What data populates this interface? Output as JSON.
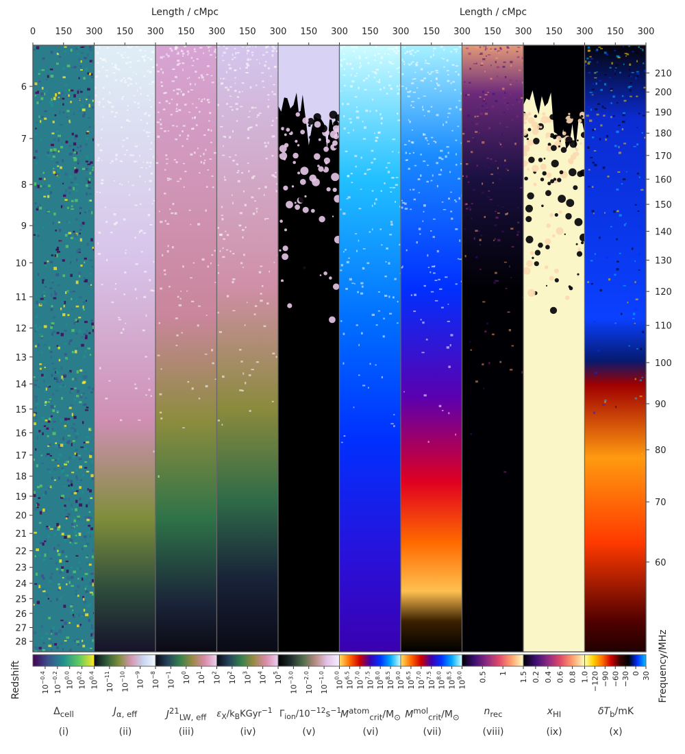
{
  "figure": {
    "top_axis_label": "Length / cMpc",
    "left_axis_label": "Redshift",
    "right_axis_label": "Frequency/MHz"
  },
  "chart_data": {
    "type": "heatmap",
    "description_panels": 10,
    "x": {
      "label": "Length / cMpc",
      "ticks": [
        "0",
        "150",
        "300"
      ],
      "range": [
        0,
        300
      ]
    },
    "y_left": {
      "label": "Redshift",
      "ticks": [
        6,
        7,
        8,
        9,
        10,
        11,
        12,
        13,
        14,
        15,
        16,
        17,
        18,
        19,
        20,
        21,
        22,
        23,
        24,
        25,
        26,
        27,
        28
      ]
    },
    "y_right": {
      "label": "Frequency/MHz",
      "ticks": [
        210,
        200,
        190,
        180,
        170,
        160,
        150,
        140,
        130,
        120,
        110,
        100,
        90,
        80,
        70,
        60
      ]
    },
    "panels": [
      {
        "id": "(i)",
        "quantity": "Δcell",
        "colorbar_ticks": [
          "10^-0.4",
          "10^-0.2",
          "10^0.0",
          "10^0.2",
          "10^0.4"
        ],
        "colormap": [
          "#440154",
          "#3b528b",
          "#21908d",
          "#5dc963",
          "#fde725"
        ]
      },
      {
        "id": "(ii)",
        "quantity": "Jα,eff",
        "colorbar_ticks": [
          "10^-11",
          "10^-10",
          "10^-9",
          "10^-8"
        ],
        "colormap": [
          "#0b0b17",
          "#2e5a3a",
          "#7b8e3a",
          "#d495b0",
          "#c8d6f0",
          "#f2f9ff"
        ]
      },
      {
        "id": "(iii)",
        "quantity": "J21LW,eff",
        "colorbar_ticks": [
          "10^-1",
          "10^0",
          "10^1",
          "10^2"
        ],
        "colormap": [
          "#0b0b17",
          "#24435a",
          "#36804b",
          "#9a8a45",
          "#d98aa8",
          "#e8d0f0"
        ]
      },
      {
        "id": "(iv)",
        "quantity": "εX/kBKGyr^-1",
        "colorbar_ticks": [
          "10^2",
          "10^3",
          "10^4",
          "10^5"
        ],
        "colormap": [
          "#0b0b17",
          "#24435a",
          "#36804b",
          "#9a8a45",
          "#d98aa8",
          "#e8d0f0"
        ]
      },
      {
        "id": "(v)",
        "quantity": "Γion/10^-12s^-1",
        "colorbar_ticks": [
          "10^-3.0",
          "10^-2.0",
          "10^-1.0",
          "10^0.0"
        ],
        "colormap": [
          "#000000",
          "#1e2b2d",
          "#4d6c4a",
          "#b58a7f",
          "#e3c3e8",
          "#f4f0ff"
        ]
      },
      {
        "id": "(vi)",
        "quantity": "Matomcrit/M⊙",
        "colorbar_ticks": [
          "10^6.5",
          "10^7.0",
          "10^7.5",
          "10^8.0",
          "10^8.5",
          "10^9.0"
        ],
        "colormap": [
          "#ffe066",
          "#ff6a00",
          "#cc0000",
          "#3a00b0",
          "#0033ff",
          "#00aaff",
          "#ccffff"
        ]
      },
      {
        "id": "(vii)",
        "quantity": "Mmolcrit/M⊙",
        "colorbar_ticks": [
          "10^6.5",
          "10^7.0",
          "10^7.5",
          "10^8.0",
          "10^8.5",
          "10^9.0"
        ],
        "colormap": [
          "#ffe066",
          "#ff6a00",
          "#cc0000",
          "#3a00b0",
          "#0033ff",
          "#00aaff",
          "#ccffff"
        ]
      },
      {
        "id": "(viii)",
        "quantity": "nrec",
        "colorbar_ticks": [
          "0.5",
          "1",
          "1.5"
        ],
        "colormap": [
          "#000004",
          "#3b0f70",
          "#8c2981",
          "#de4968",
          "#fe9f6d",
          "#fcfdbf"
        ]
      },
      {
        "id": "(ix)",
        "quantity": "xHI",
        "colorbar_ticks": [
          "0.2",
          "0.4",
          "0.6",
          "0.8",
          "1.0"
        ],
        "colormap": [
          "#000004",
          "#3b0f70",
          "#8c2981",
          "#de4968",
          "#fe9f6d",
          "#fcfdbf"
        ]
      },
      {
        "id": "(x)",
        "quantity": "δTb/mK",
        "colorbar_ticks": [
          "-120",
          "-90",
          "-60",
          "-30",
          "0",
          "30"
        ],
        "colormap": [
          "#ffffb0",
          "#ffd000",
          "#ff7000",
          "#cc0000",
          "#400000",
          "#000000",
          "#0030ff",
          "#00c0ff"
        ]
      }
    ]
  },
  "labels": {
    "p1": {
      "main": "Δ",
      "sub": "cell"
    },
    "p2": {
      "main": "J",
      "sub": "α, eff"
    },
    "p3": {
      "main": "J",
      "sup": "21",
      "sub": "LW, eff"
    },
    "p4": {
      "main": "ε",
      "sub": "X",
      "rest": "/k",
      "sub2": "B",
      "rest2": "KGyr",
      "sup": "−1"
    },
    "p5": {
      "main": "Γ",
      "sub": "ion",
      "rest": "/10",
      "sup": "−12",
      "rest2": "s",
      "sup2": "−1"
    },
    "p6": {
      "main": "M",
      "sup": "atom",
      "sub": "crit",
      "rest": "/M",
      "sub2": "⊙"
    },
    "p7": {
      "main": "M",
      "sup": "mol",
      "sub": "crit",
      "rest": "/M",
      "sub2": "⊙"
    },
    "p8": {
      "main": "n",
      "sub": "rec"
    },
    "p9": {
      "main": "x",
      "sub": "HI"
    },
    "p10": {
      "main": "δT",
      "sub": "b",
      "rest": "/mK"
    }
  }
}
